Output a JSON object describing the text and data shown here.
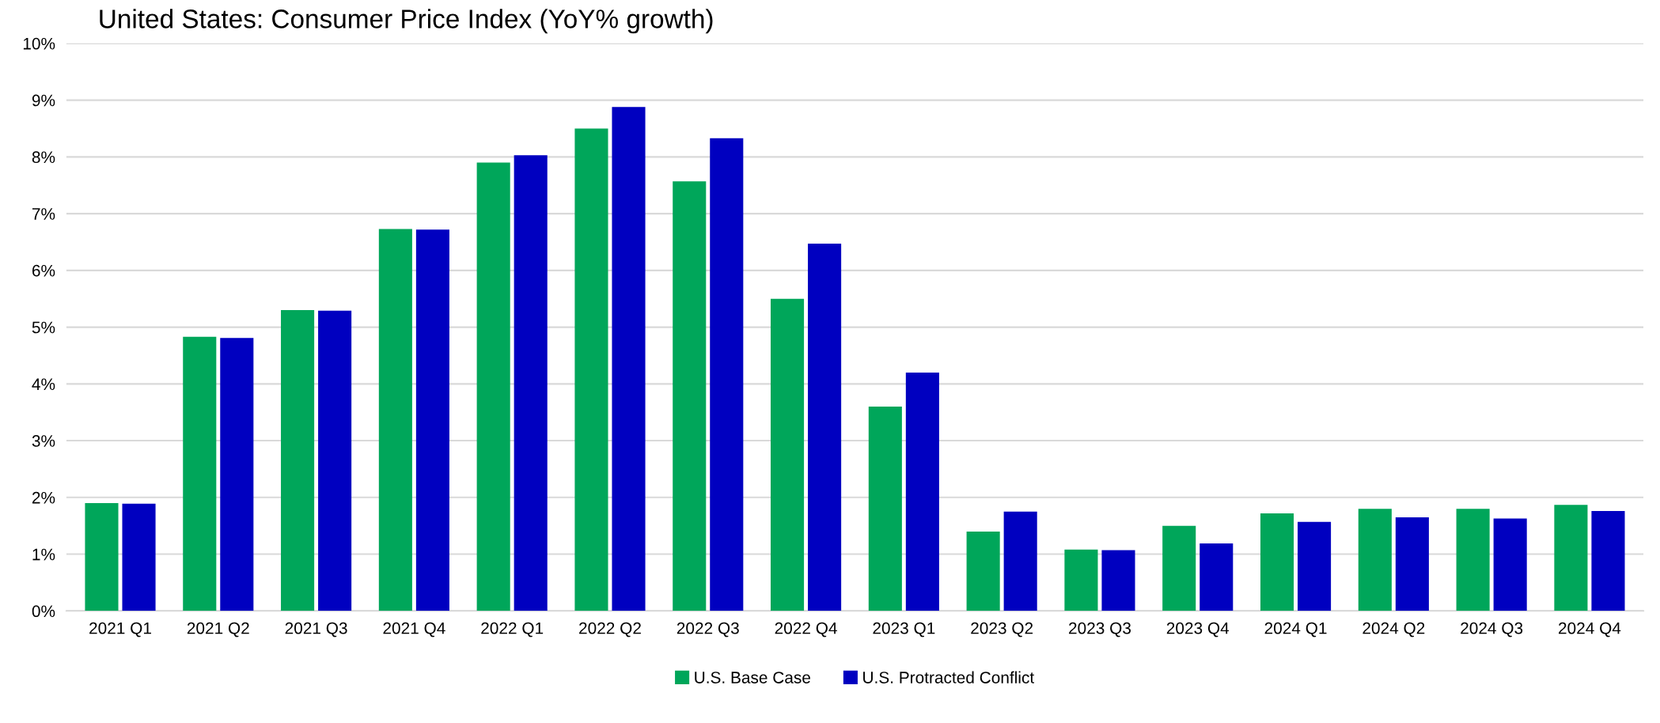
{
  "chart_data": {
    "type": "bar",
    "title": "United States: Consumer Price Index (YoY% growth)",
    "categories": [
      "2021 Q1",
      "2021 Q2",
      "2021 Q3",
      "2021 Q4",
      "2022 Q1",
      "2022 Q2",
      "2022 Q3",
      "2022 Q4",
      "2023 Q1",
      "2023 Q2",
      "2023 Q3",
      "2023 Q4",
      "2024 Q1",
      "2024 Q2",
      "2024 Q3",
      "2024 Q4"
    ],
    "series": [
      {
        "name": "U.S. Base Case",
        "color": "#00a65a",
        "values": [
          1.9,
          4.83,
          5.3,
          6.73,
          7.9,
          8.5,
          7.57,
          5.5,
          3.6,
          1.4,
          1.08,
          1.5,
          1.72,
          1.8,
          1.8,
          1.87
        ]
      },
      {
        "name": "U.S. Protracted Conflict",
        "color": "#0000c0",
        "values": [
          1.89,
          4.81,
          5.29,
          6.72,
          8.03,
          8.88,
          8.33,
          6.47,
          4.2,
          1.75,
          1.07,
          1.19,
          1.57,
          1.65,
          1.63,
          1.76
        ]
      }
    ],
    "ylim": [
      0,
      10
    ],
    "yticks": [
      {
        "value": 0,
        "label": "0%"
      },
      {
        "value": 1,
        "label": "1%"
      },
      {
        "value": 2,
        "label": "2%"
      },
      {
        "value": 3,
        "label": "3%"
      },
      {
        "value": 4,
        "label": "4%"
      },
      {
        "value": 5,
        "label": "5%"
      },
      {
        "value": 6,
        "label": "6%"
      },
      {
        "value": 7,
        "label": "7%"
      },
      {
        "value": 8,
        "label": "8%"
      },
      {
        "value": 9,
        "label": "9%"
      },
      {
        "value": 10,
        "label": "10%"
      }
    ],
    "grid": "y",
    "legend": "bottom"
  }
}
